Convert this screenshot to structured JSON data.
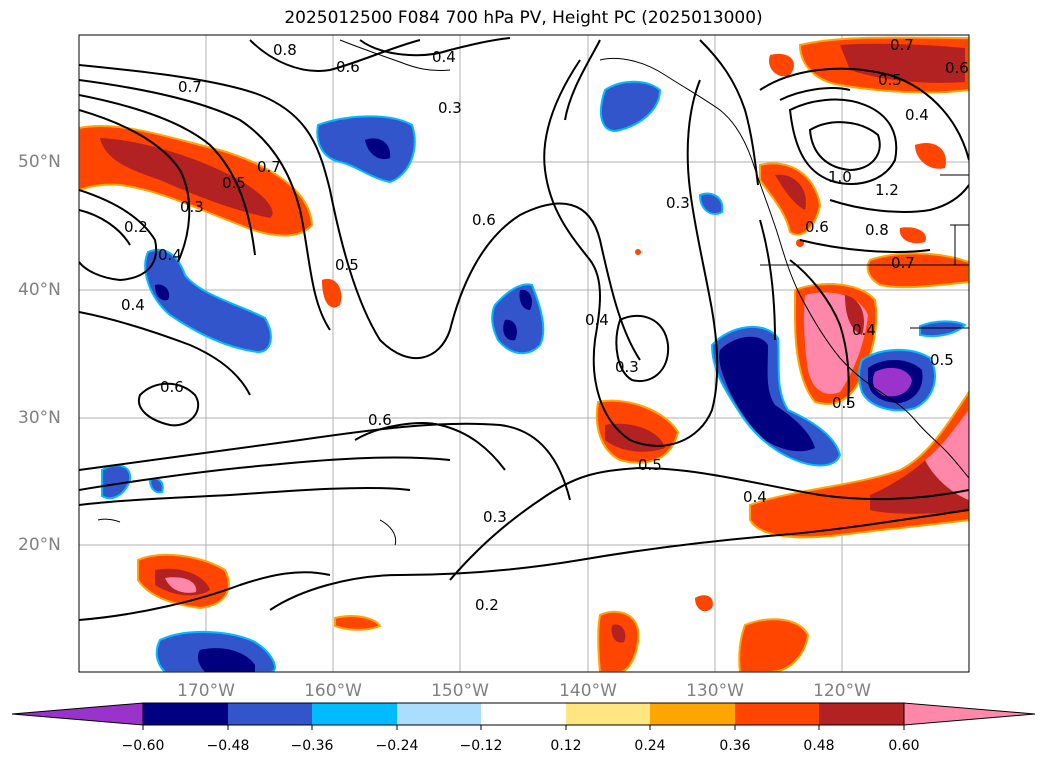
{
  "title": "2025012500 F084 700 hPa PV, Height PC (2025013000)",
  "lat_labels": [
    "50°N",
    "40°N",
    "30°N",
    "20°N"
  ],
  "lon_labels": [
    "170°W",
    "160°W",
    "150°W",
    "140°W",
    "130°W",
    "120°W"
  ],
  "colorbar": {
    "ticks": [
      "−0.60",
      "−0.48",
      "−0.36",
      "−0.24",
      "−0.12",
      "0.12",
      "0.24",
      "0.36",
      "0.48",
      "0.60"
    ],
    "colors": [
      "#9933cc",
      "#000080",
      "#3355cc",
      "#00bbff",
      "#aaddff",
      "#ffffff",
      "#ffe680",
      "#ffa500",
      "#ff4500",
      "#b22222",
      "#ff88aa"
    ]
  },
  "contour_labels": [
    "0.8",
    "0.6",
    "0.4",
    "0.7",
    "0.3",
    "0.7",
    "0.5",
    "0.6",
    "0.4",
    "0.7",
    "0.5",
    "0.2",
    "0.6",
    "0.3",
    "0.3",
    "1.0",
    "1.2",
    "0.8",
    "0.6",
    "0.4",
    "0.5",
    "0.4",
    "0.3",
    "0.4",
    "0.5",
    "0.6",
    "0.7",
    "0.6",
    "0.5",
    "0.4",
    "0.5",
    "0.3",
    "0.4",
    "0.2"
  ]
}
